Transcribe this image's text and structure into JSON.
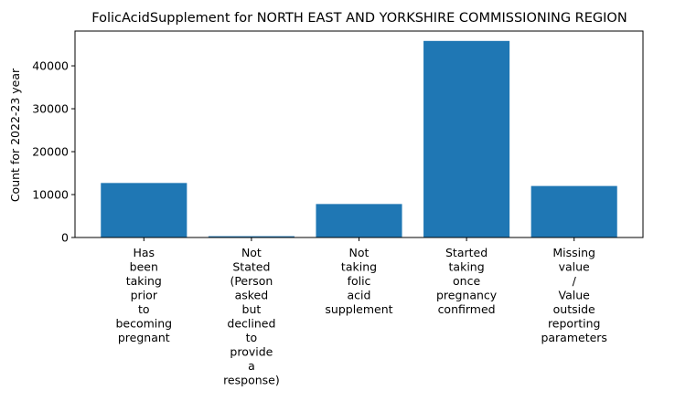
{
  "chart_data": {
    "type": "bar",
    "title": "FolicAcidSupplement for NORTH EAST AND YORKSHIRE COMMISSIONING REGION",
    "xlabel": "",
    "ylabel": "Count for 2022-23 year",
    "categories": [
      "Has been taking prior to becoming pregnant",
      "Not Stated (Person asked but declined to provide a response)",
      "Not taking folic acid supplement",
      "Started taking once pregnancy confirmed",
      "Missing value / Value outside reporting parameters"
    ],
    "values": [
      12700,
      300,
      7800,
      45800,
      12000
    ],
    "ylim": [
      0,
      48100
    ],
    "yticks": [
      "0",
      "10000",
      "20000",
      "30000",
      "40000"
    ],
    "bar_color": "#1f77b4",
    "grid": false,
    "legend": "none"
  }
}
